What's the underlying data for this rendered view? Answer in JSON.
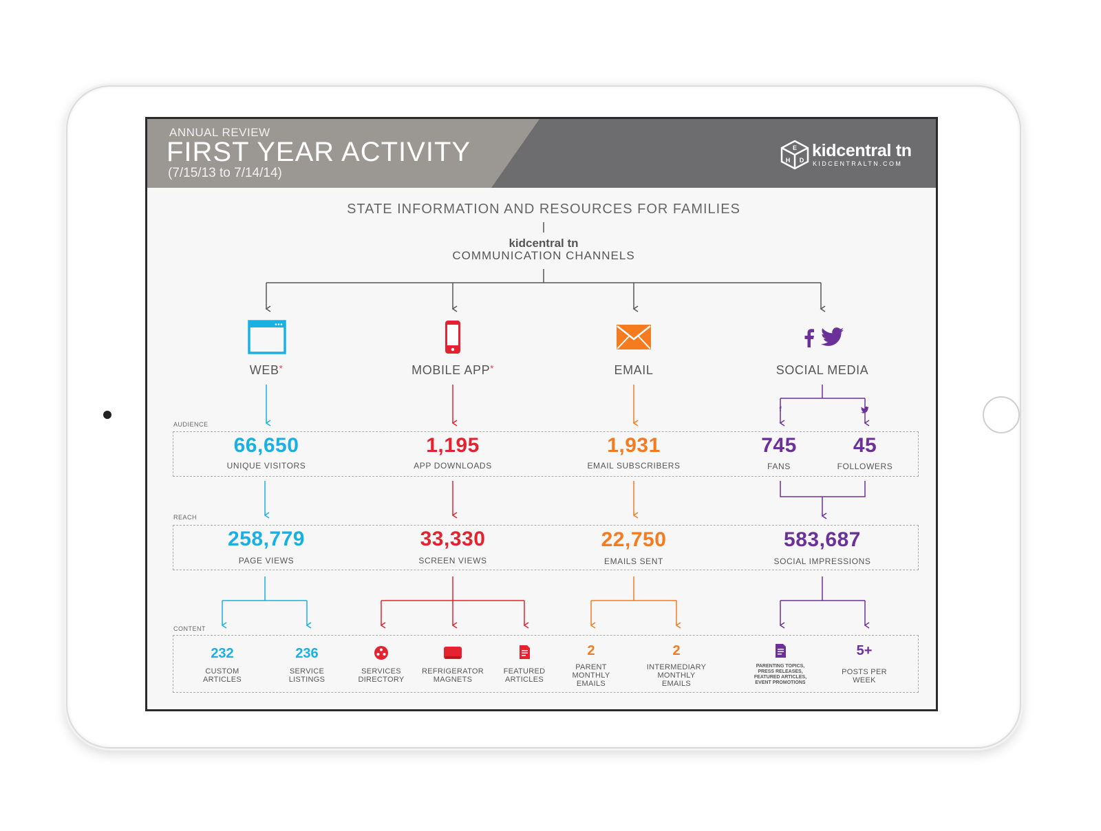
{
  "colors": {
    "web": "#19b0e4",
    "mobile": "#e5222f",
    "email": "#f47b20",
    "social": "#6c3199",
    "connector": "#555555",
    "header": "#6d6d6f",
    "header_accent": "#9b9894"
  },
  "header": {
    "subtitle": "ANNUAL REVIEW",
    "title": "FIRST YEAR ACTIVITY",
    "date_range": "(7/15/13 to 7/14/14)",
    "logo": {
      "name": "kidcentral tn",
      "url": "KIDCENTRALTN.COM",
      "icon": "cube-logo-icon"
    }
  },
  "intro": {
    "title": "STATE INFORMATION AND RESOURCES FOR FAMILIES",
    "brand": "kidcentral tn",
    "subtitle": "COMMUNICATION CHANNELS"
  },
  "section_labels": {
    "audience": "AUDIENCE",
    "reach": "REACH",
    "content": "CONTENT"
  },
  "channels": {
    "web": {
      "label": "WEB",
      "asterisk": "*",
      "icon": "browser-window-icon",
      "audience": {
        "value": "66,650",
        "label": "UNIQUE VISITORS"
      },
      "reach": {
        "value": "258,779",
        "label": "PAGE VIEWS"
      },
      "content": [
        {
          "value": "232",
          "line1": "CUSTOM",
          "line2": "ARTICLES"
        },
        {
          "value": "236",
          "line1": "SERVICE",
          "line2": "LISTINGS"
        }
      ]
    },
    "mobile": {
      "label": "MOBILE APP",
      "asterisk": "*",
      "icon": "smartphone-icon",
      "audience": {
        "value": "1,195",
        "label": "APP DOWNLOADS"
      },
      "reach": {
        "value": "33,330",
        "label": "SCREEN VIEWS"
      },
      "content": [
        {
          "icon": "services-directory-icon",
          "line1": "SERVICES",
          "line2": "DIRECTORY"
        },
        {
          "icon": "magnet-icon",
          "line1": "REFRIGERATOR",
          "line2": "MAGNETS"
        },
        {
          "icon": "document-icon",
          "line1": "FEATURED",
          "line2": "ARTICLES"
        }
      ]
    },
    "email": {
      "label": "EMAIL",
      "icon": "envelope-icon",
      "audience": {
        "value": "1,931",
        "label": "EMAIL SUBSCRIBERS"
      },
      "reach": {
        "value": "22,750",
        "label": "EMAILS SENT"
      },
      "content": [
        {
          "value": "2",
          "line1": "PARENT",
          "line2": "MONTHLY",
          "line3": "EMAILS"
        },
        {
          "value": "2",
          "line1": "INTERMEDIARY",
          "line2": "MONTHLY",
          "line3": "EMAILS"
        }
      ]
    },
    "social": {
      "label": "SOCIAL MEDIA",
      "icons": [
        "facebook-icon",
        "twitter-icon"
      ],
      "audience": [
        {
          "value": "745",
          "label": "FANS"
        },
        {
          "value": "45",
          "label": "FOLLOWERS"
        }
      ],
      "reach": {
        "value": "583,687",
        "label": "SOCIAL IMPRESSIONS"
      },
      "content": [
        {
          "icon": "document-icon",
          "line1": "PARENTING TOPICS,",
          "line2": "PRESS RELEASES,",
          "line3": "FEATURED ARTICLES,",
          "line4": "EVENT PROMOTIONS"
        },
        {
          "value": "5+",
          "line1": "POSTS PER",
          "line2": "WEEK"
        }
      ]
    }
  }
}
